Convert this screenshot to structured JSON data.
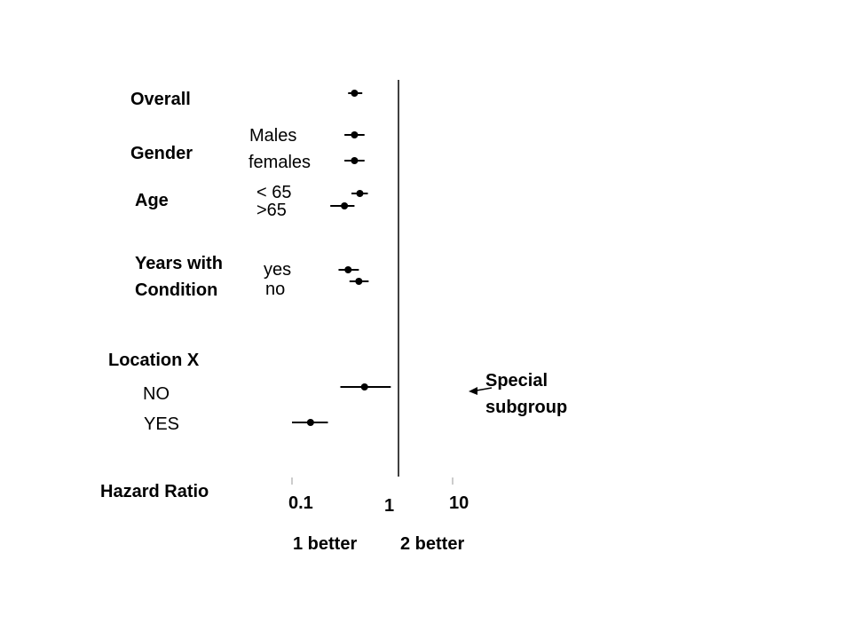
{
  "chart_data": {
    "type": "scatter",
    "x_axis": {
      "label": "Hazard Ratio",
      "scale": "log",
      "ticks": [
        "0.1",
        "1",
        "10"
      ]
    },
    "direction_labels": {
      "left": "1 better",
      "right": "2 better"
    },
    "groups": [
      {
        "label": "Overall",
        "rows": [
          {
            "sublabel": "",
            "hr": 0.6,
            "ci": [
              0.5,
              0.75
            ]
          }
        ]
      },
      {
        "label": "Gender",
        "rows": [
          {
            "sublabel": "Males",
            "hr": 0.6,
            "ci": [
              0.45,
              0.8
            ]
          },
          {
            "sublabel": "females",
            "hr": 0.6,
            "ci": [
              0.45,
              0.8
            ]
          }
        ]
      },
      {
        "label": "Age",
        "rows": [
          {
            "sublabel": "< 65",
            "hr": 0.7,
            "ci": [
              0.55,
              0.88
            ]
          },
          {
            "sublabel": ">65",
            "hr": 0.45,
            "ci": [
              0.3,
              0.6
            ]
          }
        ]
      },
      {
        "label": "Years with Condition",
        "rows": [
          {
            "sublabel": "yes",
            "hr": 0.5,
            "ci": [
              0.38,
              0.68
            ]
          },
          {
            "sublabel": "no",
            "hr": 0.68,
            "ci": [
              0.52,
              0.9
            ]
          }
        ]
      },
      {
        "label": "Location X",
        "rows": [
          {
            "sublabel": "NO",
            "hr": 0.8,
            "ci": [
              0.4,
              1.7
            ]
          },
          {
            "sublabel": "YES",
            "hr": 0.17,
            "ci": [
              0.1,
              0.28
            ]
          }
        ]
      }
    ],
    "annotation": {
      "text": "Special subgroup",
      "points_to": "Location X: NO"
    }
  }
}
